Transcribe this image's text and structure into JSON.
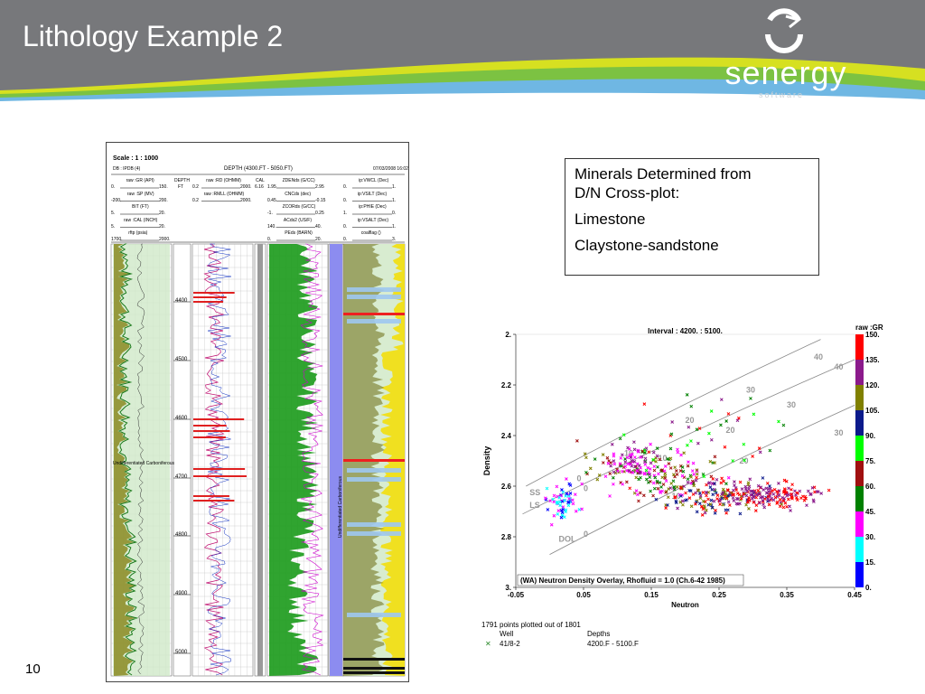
{
  "slide": {
    "title": "Lithology Example 2",
    "page_number": "10",
    "logo": {
      "word": "senergy",
      "sub": "software"
    },
    "colors": {
      "header_bg": "#77787b",
      "swoosh_yellow": "#d6e021",
      "swoosh_green": "#7cc242",
      "swoosh_blue": "#6fb7e3"
    }
  },
  "info_box": {
    "line1": "Minerals Determined from",
    "line2": "D/N Cross-plot:",
    "mineral1": "Limestone",
    "mineral2": "Claystone-sandstone"
  },
  "log_panel": {
    "scale": "Scale : 1 : 1000",
    "ds": "DB : IPDB (4)",
    "depth_title": "DEPTH (4300.FT - 5050.FT)",
    "date": "07/03/2008 16:02",
    "track1": [
      {
        "name": "raw :GR (API)",
        "min": "0.",
        "max": "150."
      },
      {
        "name": "raw :SP (MV)",
        "min": "-200.",
        "max": "200."
      },
      {
        "name": "BIT (FT)",
        "min": "5.",
        "max": "20."
      },
      {
        "name": "raw :CAL (INCH)",
        "min": "5.",
        "max": "20."
      },
      {
        "name": "rftp (psia)",
        "min": "1700.",
        "max": "2000."
      }
    ],
    "depth_header": [
      "DEPTH",
      "FT"
    ],
    "track2": [
      {
        "name": "raw :RD (OHMM)",
        "min": "0.2",
        "max": "2000."
      },
      {
        "name": "raw :RMLL (OHMM)",
        "min": "0.2",
        "max": "2000."
      }
    ],
    "cal_header": [
      "CAL",
      "6.16"
    ],
    "track3": [
      {
        "name": "ZDENds (G/CC)",
        "min": "1.95",
        "max": "2.95"
      },
      {
        "name": "CNCds (dec)",
        "min": "0.45",
        "max": "-0.15"
      },
      {
        "name": "ZCORds (G/CC)",
        "min": "-1.",
        "max": "0.25"
      },
      {
        "name": "ACds2 (US/F)",
        "min": "140.",
        "max": "40."
      },
      {
        "name": "PEds (BARN)",
        "min": "0.",
        "max": "20."
      }
    ],
    "track4": [
      {
        "name": "ip:VWCL (Dec)",
        "min": "0.",
        "max": "1."
      },
      {
        "name": "ip:VSILT (Dec)",
        "min": "0.",
        "max": "1."
      },
      {
        "name": "ip:PHIE (Dec)",
        "min": "1.",
        "max": "0."
      },
      {
        "name": "ip:VSALT (Dec)",
        "min": "0.",
        "max": "1."
      },
      {
        "name": "coalflag ()",
        "min": "0.",
        "max": "3."
      }
    ],
    "depths": [
      "4400",
      "4500",
      "4600",
      "4700",
      "4800",
      "4900",
      "5000"
    ],
    "zone_label": "Undifferentiated Carboniferous"
  },
  "chart_data": {
    "type": "scatter",
    "title": "Interval : 4200. : 5100.",
    "xlabel": "Neutron",
    "ylabel": "Density",
    "xlim": [
      -0.05,
      0.45
    ],
    "ylim": [
      3.0,
      2.0
    ],
    "x_ticks": [
      "-0.05",
      "0.05",
      "0.15",
      "0.25",
      "0.35",
      "0.45"
    ],
    "y_ticks": [
      "2.",
      "2.2",
      "2.4",
      "2.6",
      "2.8",
      "3."
    ],
    "annotation": "(WA) Neutron Density Overlay, Rhofluid = 1.0 (Ch.6-42 1985)",
    "colorbar_title": "raw :GR",
    "colorbar_ticks": [
      "150.",
      "135.",
      "120.",
      "105.",
      "90.",
      "75.",
      "60.",
      "45.",
      "30.",
      "15.",
      "0."
    ],
    "colorbar_colors": [
      "#ff0000",
      "#8b1a8b",
      "#808000",
      "#0b1a8b",
      "#00ff00",
      "#a01010",
      "#008000",
      "#ff00ff",
      "#00ffff",
      "#0000ff"
    ],
    "lithology_lines": [
      {
        "name": "SS",
        "labels": [
          "0",
          "10",
          "20",
          "30",
          "40"
        ]
      },
      {
        "name": "LS",
        "labels": [
          "0",
          "10",
          "20",
          "30",
          "40"
        ]
      },
      {
        "name": "DOL",
        "labels": [
          "0",
          "10",
          "20",
          "30"
        ]
      }
    ],
    "footer": {
      "points": "1791 points plotted out of 1801",
      "col_well": "Well",
      "col_depths": "Depths",
      "well": "41/8-2",
      "depths": "4200.F - 5100.F"
    }
  }
}
